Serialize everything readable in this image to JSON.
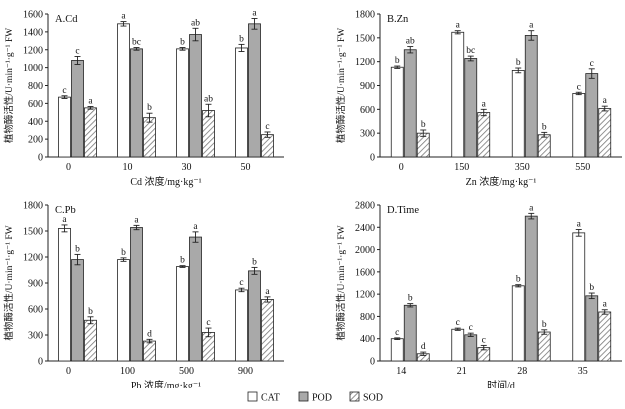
{
  "chart_data": [
    {
      "type": "bar",
      "panel_label": "A.Cd",
      "ylabel": "植物酶活性/U·min⁻¹·g⁻¹ FW",
      "xlabel": "Cd 浓度/mg·kg⁻¹",
      "categories": [
        "0",
        "10",
        "30",
        "50"
      ],
      "ylim": [
        0,
        1600
      ],
      "yticks": [
        0,
        200,
        400,
        600,
        800,
        1000,
        1200,
        1400,
        1600
      ],
      "series": [
        {
          "name": "CAT",
          "values": [
            670,
            1490,
            1210,
            1220
          ],
          "errors": [
            15,
            25,
            15,
            40
          ],
          "letters": [
            "c",
            "a",
            "b",
            "b"
          ]
        },
        {
          "name": "POD",
          "values": [
            1080,
            1210,
            1370,
            1490
          ],
          "errors": [
            45,
            15,
            70,
            60
          ],
          "letters": [
            "c",
            "bc",
            "ab",
            "a"
          ]
        },
        {
          "name": "SOD",
          "values": [
            550,
            440,
            520,
            250
          ],
          "errors": [
            15,
            50,
            70,
            30
          ],
          "letters": [
            "a",
            "b",
            "ab",
            "c"
          ]
        }
      ]
    },
    {
      "type": "bar",
      "panel_label": "B.Zn",
      "ylabel": "植物酶活性/U·min⁻¹·g⁻¹ FW",
      "xlabel": "Zn 浓度/mg·kg⁻¹",
      "categories": [
        "0",
        "150",
        "350",
        "550"
      ],
      "ylim": [
        0,
        1800
      ],
      "yticks": [
        0,
        300,
        600,
        900,
        1200,
        1500,
        1800
      ],
      "series": [
        {
          "name": "CAT",
          "values": [
            1130,
            1570,
            1090,
            800
          ],
          "errors": [
            15,
            20,
            30,
            15
          ],
          "letters": [
            "b",
            "a",
            "b",
            "c"
          ]
        },
        {
          "name": "POD",
          "values": [
            1350,
            1240,
            1530,
            1050
          ],
          "errors": [
            40,
            30,
            60,
            60
          ],
          "letters": [
            "ab",
            "bc",
            "a",
            "c"
          ]
        },
        {
          "name": "SOD",
          "values": [
            300,
            560,
            280,
            610
          ],
          "errors": [
            40,
            40,
            30,
            30
          ],
          "letters": [
            "b",
            "a",
            "b",
            "a"
          ]
        }
      ]
    },
    {
      "type": "bar",
      "panel_label": "C.Pb",
      "ylabel": "植物酶活性/U·min⁻¹·g⁻¹ FW",
      "xlabel": "Pb 浓度/mg·kg⁻¹",
      "categories": [
        "0",
        "100",
        "500",
        "900"
      ],
      "ylim": [
        0,
        1800
      ],
      "yticks": [
        0,
        300,
        600,
        900,
        1200,
        1500,
        1800
      ],
      "series": [
        {
          "name": "CAT",
          "values": [
            1530,
            1170,
            1090,
            820
          ],
          "errors": [
            40,
            20,
            10,
            20
          ],
          "letters": [
            "a",
            "b",
            "b",
            "c"
          ]
        },
        {
          "name": "POD",
          "values": [
            1170,
            1540,
            1430,
            1040
          ],
          "errors": [
            60,
            25,
            60,
            40
          ],
          "letters": [
            "b",
            "a",
            "a",
            "b"
          ]
        },
        {
          "name": "SOD",
          "values": [
            470,
            230,
            330,
            710
          ],
          "errors": [
            40,
            20,
            50,
            30
          ],
          "letters": [
            "b",
            "d",
            "c",
            "a"
          ]
        }
      ]
    },
    {
      "type": "bar",
      "panel_label": "D.Time",
      "ylabel": "植物酶活性/U·min⁻¹·g⁻¹ FW",
      "xlabel": "时间/d",
      "categories": [
        "14",
        "21",
        "28",
        "35"
      ],
      "ylim": [
        0,
        2800
      ],
      "yticks": [
        0,
        400,
        800,
        1200,
        1600,
        2000,
        2400,
        2800
      ],
      "series": [
        {
          "name": "CAT",
          "values": [
            400,
            570,
            1350,
            2300
          ],
          "errors": [
            15,
            20,
            20,
            60
          ],
          "letters": [
            "c",
            "c",
            "b",
            "a"
          ]
        },
        {
          "name": "POD",
          "values": [
            1000,
            470,
            2600,
            1170
          ],
          "errors": [
            30,
            30,
            50,
            50
          ],
          "letters": [
            "b",
            "c",
            "a",
            "b"
          ]
        },
        {
          "name": "SOD",
          "values": [
            130,
            240,
            520,
            880
          ],
          "errors": [
            30,
            40,
            40,
            40
          ],
          "letters": [
            "d",
            "c",
            "b",
            "a"
          ]
        }
      ]
    }
  ],
  "legend": {
    "items": [
      {
        "name": "CAT",
        "pattern": "white"
      },
      {
        "name": "POD",
        "pattern": "gray"
      },
      {
        "name": "SOD",
        "pattern": "hatched"
      }
    ]
  },
  "colors": {
    "cat_fill": "#ffffff",
    "pod_fill": "#a9a9a9",
    "sod_hatch": "#777777",
    "stroke": "#222222"
  }
}
